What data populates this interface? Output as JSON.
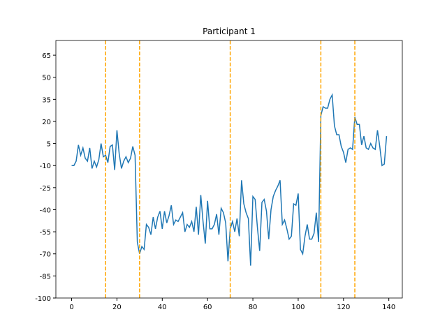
{
  "chart_data": {
    "type": "line",
    "title": "Participant 1",
    "x": [
      0,
      1,
      2,
      3,
      4,
      5,
      6,
      7,
      8,
      9,
      10,
      11,
      12,
      13,
      14,
      15,
      16,
      17,
      18,
      19,
      20,
      21,
      22,
      23,
      24,
      25,
      26,
      27,
      28,
      29,
      30,
      31,
      32,
      33,
      34,
      35,
      36,
      37,
      38,
      39,
      40,
      41,
      42,
      43,
      44,
      45,
      46,
      47,
      48,
      49,
      50,
      51,
      52,
      53,
      54,
      55,
      56,
      57,
      58,
      59,
      60,
      61,
      62,
      63,
      64,
      65,
      66,
      67,
      68,
      69,
      70,
      71,
      72,
      73,
      74,
      75,
      76,
      77,
      78,
      79,
      80,
      81,
      82,
      83,
      84,
      85,
      86,
      87,
      88,
      89,
      90,
      91,
      92,
      93,
      94,
      95,
      96,
      97,
      98,
      99,
      100,
      101,
      102,
      103,
      104,
      105,
      106,
      107,
      108,
      109,
      110,
      111,
      112,
      113,
      114,
      115,
      116,
      117,
      118,
      119,
      120,
      121,
      122,
      123,
      124,
      125,
      126,
      127,
      128,
      129,
      130,
      131,
      132,
      133,
      134,
      135,
      136,
      137,
      138,
      139
    ],
    "series": [
      {
        "color": "#1f77b4",
        "values": [
          -10,
          -10,
          -7,
          4,
          -3,
          2,
          -5,
          -7,
          2,
          -12,
          -7,
          -11,
          -6,
          5,
          -4,
          -3,
          -8,
          3,
          4,
          -13,
          14,
          -2,
          -12,
          -7,
          -4,
          -8,
          -5,
          3,
          -3,
          -62,
          -70,
          -65,
          -67,
          -50,
          -52,
          -57,
          -45,
          -53,
          -45,
          -41,
          -53,
          -41,
          -49,
          -44,
          -37,
          -50,
          -47,
          -48,
          -45,
          -42,
          -55,
          -50,
          -52,
          -48,
          -55,
          -38,
          -57,
          -30,
          -48,
          -63,
          -34,
          -53,
          -53,
          -50,
          -43,
          -57,
          -39,
          -42,
          -49,
          -75,
          -53,
          -48,
          -55,
          -46,
          -58,
          -20,
          -36,
          -42,
          -46,
          -78,
          -31,
          -33,
          -52,
          -68,
          -35,
          -33,
          -41,
          -60,
          -40,
          -31,
          -27,
          -24,
          -20,
          -50,
          -47,
          -53,
          -60,
          -58,
          -36,
          -37,
          -29,
          -67,
          -70,
          -58,
          -50,
          -60,
          -60,
          -56,
          -42,
          -62,
          24,
          30,
          29,
          29,
          35,
          38,
          17,
          11,
          11,
          3,
          -1,
          -8,
          1,
          2,
          1,
          23,
          18,
          18,
          4,
          10,
          2,
          1,
          5,
          2,
          1,
          14,
          3,
          -10,
          -9,
          10
        ]
      }
    ],
    "vlines": [
      15,
      30,
      70,
      110,
      125
    ],
    "vline_color": "#ffa500",
    "xlim": [
      -6.95,
      145.95
    ],
    "xticks": [
      0,
      20,
      40,
      60,
      80,
      100,
      120,
      140
    ],
    "ylim": [
      -100,
      75
    ],
    "yticks": [
      -100,
      -85,
      -70,
      -55,
      -40,
      -25,
      -10,
      5,
      20,
      35,
      50,
      65
    ]
  }
}
